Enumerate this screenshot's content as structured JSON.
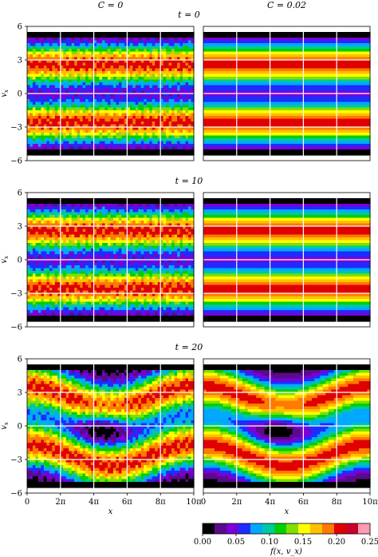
{
  "figure": {
    "columns": [
      "C = 0",
      "C = 0.02"
    ],
    "time_labels": [
      "t = 0",
      "t = 10",
      "t = 20"
    ],
    "xlabel": "x",
    "ylabel": "v_x",
    "colorbar_label": "f(x, v_x)"
  },
  "chart_data": {
    "type": "heatmap",
    "x": {
      "label": "x",
      "range_pi": [
        0,
        10
      ],
      "ticks": [
        "0",
        "2π",
        "4π",
        "6π",
        "8π",
        "10π"
      ],
      "tick_values_pi": [
        0,
        2,
        4,
        6,
        8,
        10
      ]
    },
    "y": {
      "label": "v_x",
      "range": [
        -6,
        6
      ],
      "ticks": [
        "6",
        "3",
        "0",
        "−3",
        "−6"
      ],
      "tick_values": [
        6,
        3,
        0,
        -3,
        -6
      ]
    },
    "color_scale": {
      "label": "f(x, v_x)",
      "range": [
        0,
        0.25
      ],
      "ticks": [
        "0.00",
        "0.05",
        "0.10",
        "0.15",
        "0.20",
        "0.25"
      ],
      "tick_values": [
        0,
        0.05,
        0.1,
        0.15,
        0.2,
        0.25
      ],
      "colors": [
        "#000000",
        "#5a0a8a",
        "#7a00d6",
        "#1e2cff",
        "#00a8ff",
        "#00c8a0",
        "#00d000",
        "#7ee000",
        "#ffff00",
        "#ffc000",
        "#ff7a00",
        "#e00000",
        "#c8002a",
        "#ff9cb0"
      ]
    },
    "grid": true,
    "panels": [
      {
        "row": 0,
        "col": 0,
        "t": 0,
        "C": 0
      },
      {
        "row": 0,
        "col": 1,
        "t": 0,
        "C": 0.02
      },
      {
        "row": 1,
        "col": 0,
        "t": 10,
        "C": 0
      },
      {
        "row": 1,
        "col": 1,
        "t": 10,
        "C": 0.02
      },
      {
        "row": 2,
        "col": 0,
        "t": 20,
        "C": 0
      },
      {
        "row": 2,
        "col": 1,
        "t": 20,
        "C": 0.02
      }
    ]
  }
}
